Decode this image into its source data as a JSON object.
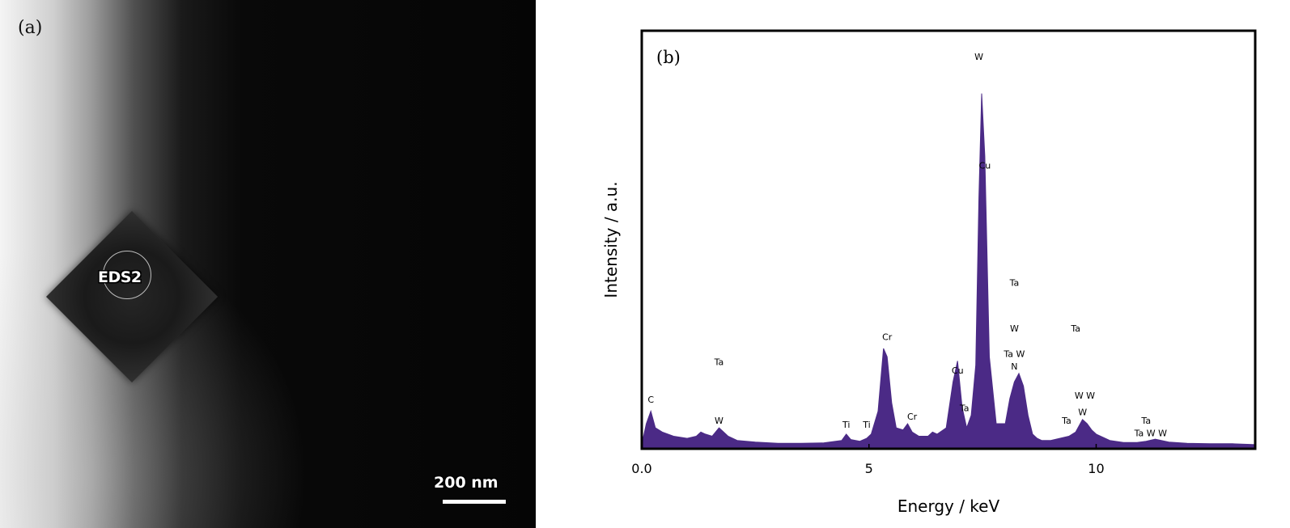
{
  "panel_a": {
    "label": "(a)",
    "region_label": "EDS2",
    "scale_bar_text": "200 nm"
  },
  "chart_data": {
    "type": "line",
    "panel_label": "(b)",
    "title": "",
    "xlabel": "Energy / keV",
    "ylabel": "Intensity / a.u.",
    "xlim": [
      0,
      13.5
    ],
    "ylim": [
      0,
      100
    ],
    "x_ticks": [
      {
        "value": 0,
        "label": "0.0"
      },
      {
        "value": 5,
        "label": "5"
      },
      {
        "value": 10,
        "label": "10"
      }
    ],
    "grid": false,
    "series": [
      {
        "color": "#4b2a86",
        "fill": true,
        "x": [
          0.0,
          0.1,
          0.2,
          0.3,
          0.45,
          0.7,
          1.0,
          1.2,
          1.3,
          1.4,
          1.55,
          1.7,
          1.8,
          1.9,
          2.1,
          2.5,
          3.0,
          3.5,
          4.0,
          4.4,
          4.5,
          4.6,
          4.8,
          4.95,
          5.05,
          5.2,
          5.32,
          5.4,
          5.5,
          5.6,
          5.75,
          5.85,
          5.95,
          6.1,
          6.3,
          6.4,
          6.5,
          6.7,
          6.85,
          6.95,
          7.05,
          7.15,
          7.25,
          7.35,
          7.42,
          7.48,
          7.55,
          7.65,
          7.8,
          8.0,
          8.1,
          8.2,
          8.3,
          8.4,
          8.5,
          8.6,
          8.7,
          8.8,
          9.0,
          9.2,
          9.4,
          9.55,
          9.7,
          9.8,
          9.9,
          10.0,
          10.3,
          10.6,
          10.9,
          11.1,
          11.3,
          11.6,
          12.0,
          12.5,
          13.0,
          13.5
        ],
        "y": [
          1.0,
          6.0,
          9.0,
          5.0,
          4.0,
          3.0,
          2.5,
          3.0,
          4.0,
          3.5,
          3.0,
          5.0,
          4.0,
          3.0,
          2.0,
          1.6,
          1.3,
          1.3,
          1.4,
          2.0,
          3.5,
          2.2,
          1.8,
          2.5,
          3.5,
          9.0,
          24.0,
          22.0,
          11.0,
          5.0,
          4.5,
          6.0,
          4.0,
          3.0,
          3.0,
          4.0,
          3.5,
          5.0,
          16.0,
          21.0,
          10.0,
          5.0,
          8.0,
          20.0,
          60.0,
          85.0,
          70.0,
          22.0,
          6.0,
          6.0,
          12.0,
          16.0,
          18.0,
          15.0,
          8.0,
          3.5,
          2.5,
          2.0,
          2.0,
          2.5,
          3.0,
          4.0,
          7.0,
          6.0,
          4.5,
          3.5,
          2.0,
          1.5,
          1.5,
          1.8,
          2.3,
          1.6,
          1.3,
          1.2,
          1.2,
          1.0
        ]
      }
    ],
    "peak_annotations": [
      {
        "label": "W",
        "x": 7.42,
        "y": 93
      },
      {
        "label": "Cu",
        "x": 7.55,
        "y": 67
      },
      {
        "label": "Ta",
        "x": 8.2,
        "y": 39
      },
      {
        "label": "W",
        "x": 8.2,
        "y": 28
      },
      {
        "label": "Ta W",
        "x": 8.2,
        "y": 22
      },
      {
        "label": "N",
        "x": 8.2,
        "y": 19
      },
      {
        "label": "Cr",
        "x": 5.4,
        "y": 26
      },
      {
        "label": "Cu",
        "x": 6.95,
        "y": 18
      },
      {
        "label": "Ta",
        "x": 7.1,
        "y": 9
      },
      {
        "label": "Cr",
        "x": 5.95,
        "y": 7
      },
      {
        "label": "C",
        "x": 0.2,
        "y": 11
      },
      {
        "label": "Ta",
        "x": 1.7,
        "y": 20
      },
      {
        "label": "W",
        "x": 1.7,
        "y": 6
      },
      {
        "label": "Ti",
        "x": 4.5,
        "y": 5
      },
      {
        "label": "Ti",
        "x": 4.95,
        "y": 5
      },
      {
        "label": "Ta",
        "x": 9.55,
        "y": 28
      },
      {
        "label": "W",
        "x": 9.7,
        "y": 8
      },
      {
        "label": "W W",
        "x": 9.75,
        "y": 12
      },
      {
        "label": "Ta",
        "x": 9.35,
        "y": 6
      },
      {
        "label": "Ta",
        "x": 11.1,
        "y": 6
      },
      {
        "label": "Ta W W",
        "x": 11.2,
        "y": 3
      }
    ]
  }
}
